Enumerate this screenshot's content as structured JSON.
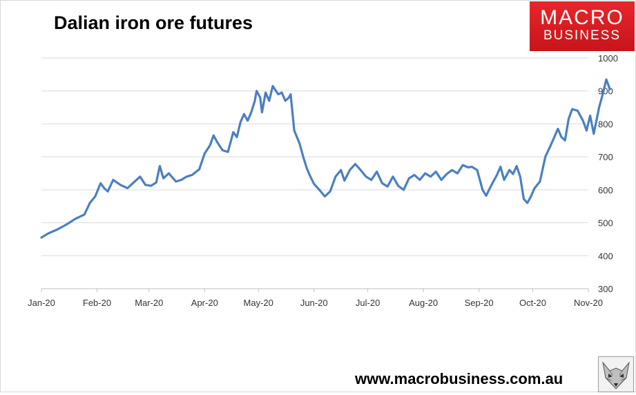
{
  "title": "Dalian iron ore futures",
  "logo": {
    "line1": "MACRO",
    "line2": "BUSINESS"
  },
  "website": "www.macrobusiness.com.au",
  "colors": {
    "line": "#4a7fc1",
    "logo": "#d71920",
    "grid": "#d9d9d9"
  },
  "icons": {
    "fox": "fox-face-icon"
  },
  "chart_data": {
    "type": "line",
    "title": "Dalian iron ore futures",
    "xlabel": "",
    "ylabel": "",
    "ylim": [
      300,
      1000
    ],
    "yticks": [
      300,
      400,
      500,
      600,
      700,
      800,
      900,
      1000
    ],
    "y_axis_side": "right",
    "grid": "horizontal",
    "x_tick_labels": [
      "Jan-20",
      "Feb-20",
      "Mar-20",
      "Apr-20",
      "May-20",
      "Jun-20",
      "Jul-20",
      "Aug-20",
      "Sep-20",
      "Oct-20",
      "Nov-20"
    ],
    "series": [
      {
        "values": [
          [
            "2020-01-01",
            455
          ],
          [
            "2020-01-05",
            468
          ],
          [
            "2020-01-10",
            480
          ],
          [
            "2020-01-15",
            495
          ],
          [
            "2020-01-20",
            512
          ],
          [
            "2020-01-25",
            525
          ],
          [
            "2020-01-28",
            560
          ],
          [
            "2020-01-31",
            580
          ],
          [
            "2020-02-03",
            620
          ],
          [
            "2020-02-05",
            605
          ],
          [
            "2020-02-07",
            595
          ],
          [
            "2020-02-10",
            630
          ],
          [
            "2020-02-14",
            615
          ],
          [
            "2020-02-18",
            605
          ],
          [
            "2020-02-22",
            625
          ],
          [
            "2020-02-25",
            640
          ],
          [
            "2020-02-28",
            615
          ],
          [
            "2020-03-02",
            612
          ],
          [
            "2020-03-05",
            622
          ],
          [
            "2020-03-07",
            672
          ],
          [
            "2020-03-09",
            635
          ],
          [
            "2020-03-12",
            650
          ],
          [
            "2020-03-16",
            625
          ],
          [
            "2020-03-19",
            630
          ],
          [
            "2020-03-22",
            640
          ],
          [
            "2020-03-25",
            645
          ],
          [
            "2020-03-29",
            662
          ],
          [
            "2020-04-01",
            710
          ],
          [
            "2020-04-04",
            735
          ],
          [
            "2020-04-06",
            765
          ],
          [
            "2020-04-08",
            745
          ],
          [
            "2020-04-11",
            720
          ],
          [
            "2020-04-14",
            715
          ],
          [
            "2020-04-17",
            775
          ],
          [
            "2020-04-19",
            760
          ],
          [
            "2020-04-21",
            805
          ],
          [
            "2020-04-23",
            830
          ],
          [
            "2020-04-25",
            810
          ],
          [
            "2020-04-27",
            835
          ],
          [
            "2020-04-29",
            870
          ],
          [
            "2020-04-30",
            900
          ],
          [
            "2020-05-02",
            880
          ],
          [
            "2020-05-03",
            835
          ],
          [
            "2020-05-05",
            895
          ],
          [
            "2020-05-07",
            870
          ],
          [
            "2020-05-09",
            915
          ],
          [
            "2020-05-12",
            890
          ],
          [
            "2020-05-14",
            895
          ],
          [
            "2020-05-16",
            870
          ],
          [
            "2020-05-18",
            880
          ],
          [
            "2020-05-19",
            890
          ],
          [
            "2020-05-21",
            780
          ],
          [
            "2020-05-24",
            740
          ],
          [
            "2020-05-26",
            700
          ],
          [
            "2020-05-28",
            665
          ],
          [
            "2020-05-30",
            640
          ],
          [
            "2020-06-01",
            618
          ],
          [
            "2020-06-04",
            600
          ],
          [
            "2020-06-07",
            580
          ],
          [
            "2020-06-10",
            595
          ],
          [
            "2020-06-13",
            640
          ],
          [
            "2020-06-16",
            660
          ],
          [
            "2020-06-18",
            628
          ],
          [
            "2020-06-21",
            660
          ],
          [
            "2020-06-24",
            678
          ],
          [
            "2020-06-27",
            660
          ],
          [
            "2020-06-30",
            640
          ],
          [
            "2020-07-03",
            630
          ],
          [
            "2020-07-06",
            655
          ],
          [
            "2020-07-09",
            620
          ],
          [
            "2020-07-12",
            610
          ],
          [
            "2020-07-15",
            640
          ],
          [
            "2020-07-18",
            612
          ],
          [
            "2020-07-21",
            600
          ],
          [
            "2020-07-24",
            635
          ],
          [
            "2020-07-27",
            645
          ],
          [
            "2020-07-30",
            630
          ],
          [
            "2020-08-02",
            650
          ],
          [
            "2020-08-05",
            640
          ],
          [
            "2020-08-08",
            655
          ],
          [
            "2020-08-11",
            630
          ],
          [
            "2020-08-14",
            648
          ],
          [
            "2020-08-17",
            660
          ],
          [
            "2020-08-20",
            650
          ],
          [
            "2020-08-23",
            675
          ],
          [
            "2020-08-26",
            668
          ],
          [
            "2020-08-28",
            670
          ],
          [
            "2020-08-31",
            660
          ],
          [
            "2020-09-03",
            600
          ],
          [
            "2020-09-05",
            582
          ],
          [
            "2020-09-08",
            615
          ],
          [
            "2020-09-11",
            645
          ],
          [
            "2020-09-13",
            670
          ],
          [
            "2020-09-15",
            630
          ],
          [
            "2020-09-18",
            660
          ],
          [
            "2020-09-20",
            648
          ],
          [
            "2020-09-22",
            672
          ],
          [
            "2020-09-24",
            640
          ],
          [
            "2020-09-26",
            572
          ],
          [
            "2020-09-28",
            560
          ],
          [
            "2020-09-30",
            580
          ],
          [
            "2020-10-02",
            605
          ],
          [
            "2020-10-05",
            625
          ],
          [
            "2020-10-08",
            700
          ],
          [
            "2020-10-11",
            735
          ],
          [
            "2020-10-13",
            760
          ],
          [
            "2020-10-15",
            785
          ],
          [
            "2020-10-17",
            760
          ],
          [
            "2020-10-19",
            750
          ],
          [
            "2020-10-21",
            815
          ],
          [
            "2020-10-23",
            845
          ],
          [
            "2020-10-26",
            840
          ],
          [
            "2020-10-29",
            810
          ],
          [
            "2020-10-31",
            780
          ],
          [
            "2020-11-02",
            825
          ],
          [
            "2020-11-04",
            770
          ],
          [
            "2020-11-07",
            850
          ],
          [
            "2020-11-09",
            890
          ],
          [
            "2020-11-11",
            935
          ],
          [
            "2020-11-13",
            905
          ]
        ]
      }
    ]
  }
}
